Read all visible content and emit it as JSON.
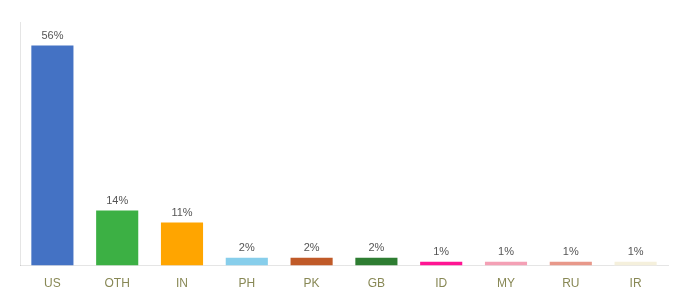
{
  "chart_data": {
    "type": "bar",
    "categories": [
      "US",
      "OTH",
      "IN",
      "PH",
      "PK",
      "GB",
      "ID",
      "MY",
      "RU",
      "IR"
    ],
    "values": [
      56,
      14,
      11,
      2,
      2,
      2,
      1,
      1,
      1,
      1
    ],
    "value_labels": [
      "56%",
      "14%",
      "11%",
      "2%",
      "2%",
      "2%",
      "1%",
      "1%",
      "1%",
      "1%"
    ],
    "colors": [
      "#4472C4",
      "#3CB044",
      "#FFA500",
      "#87CEEB",
      "#C05A28",
      "#2E7D32",
      "#FF1493",
      "#F4A0B5",
      "#E8988A",
      "#F5F0DC"
    ],
    "ylim": [
      0,
      62
    ],
    "grid": false,
    "data_labels": true,
    "tick_labels": "x"
  }
}
